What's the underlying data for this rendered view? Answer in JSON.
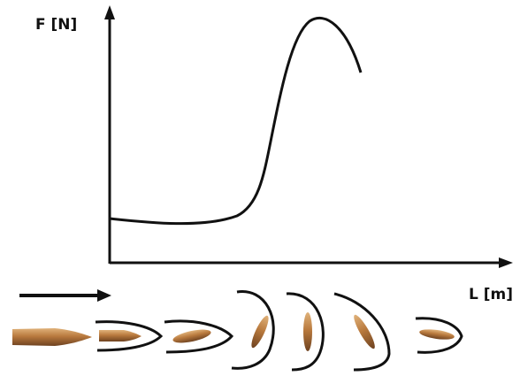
{
  "axes": {
    "y_label": "F [N]",
    "x_label": "L [m]"
  }
}
